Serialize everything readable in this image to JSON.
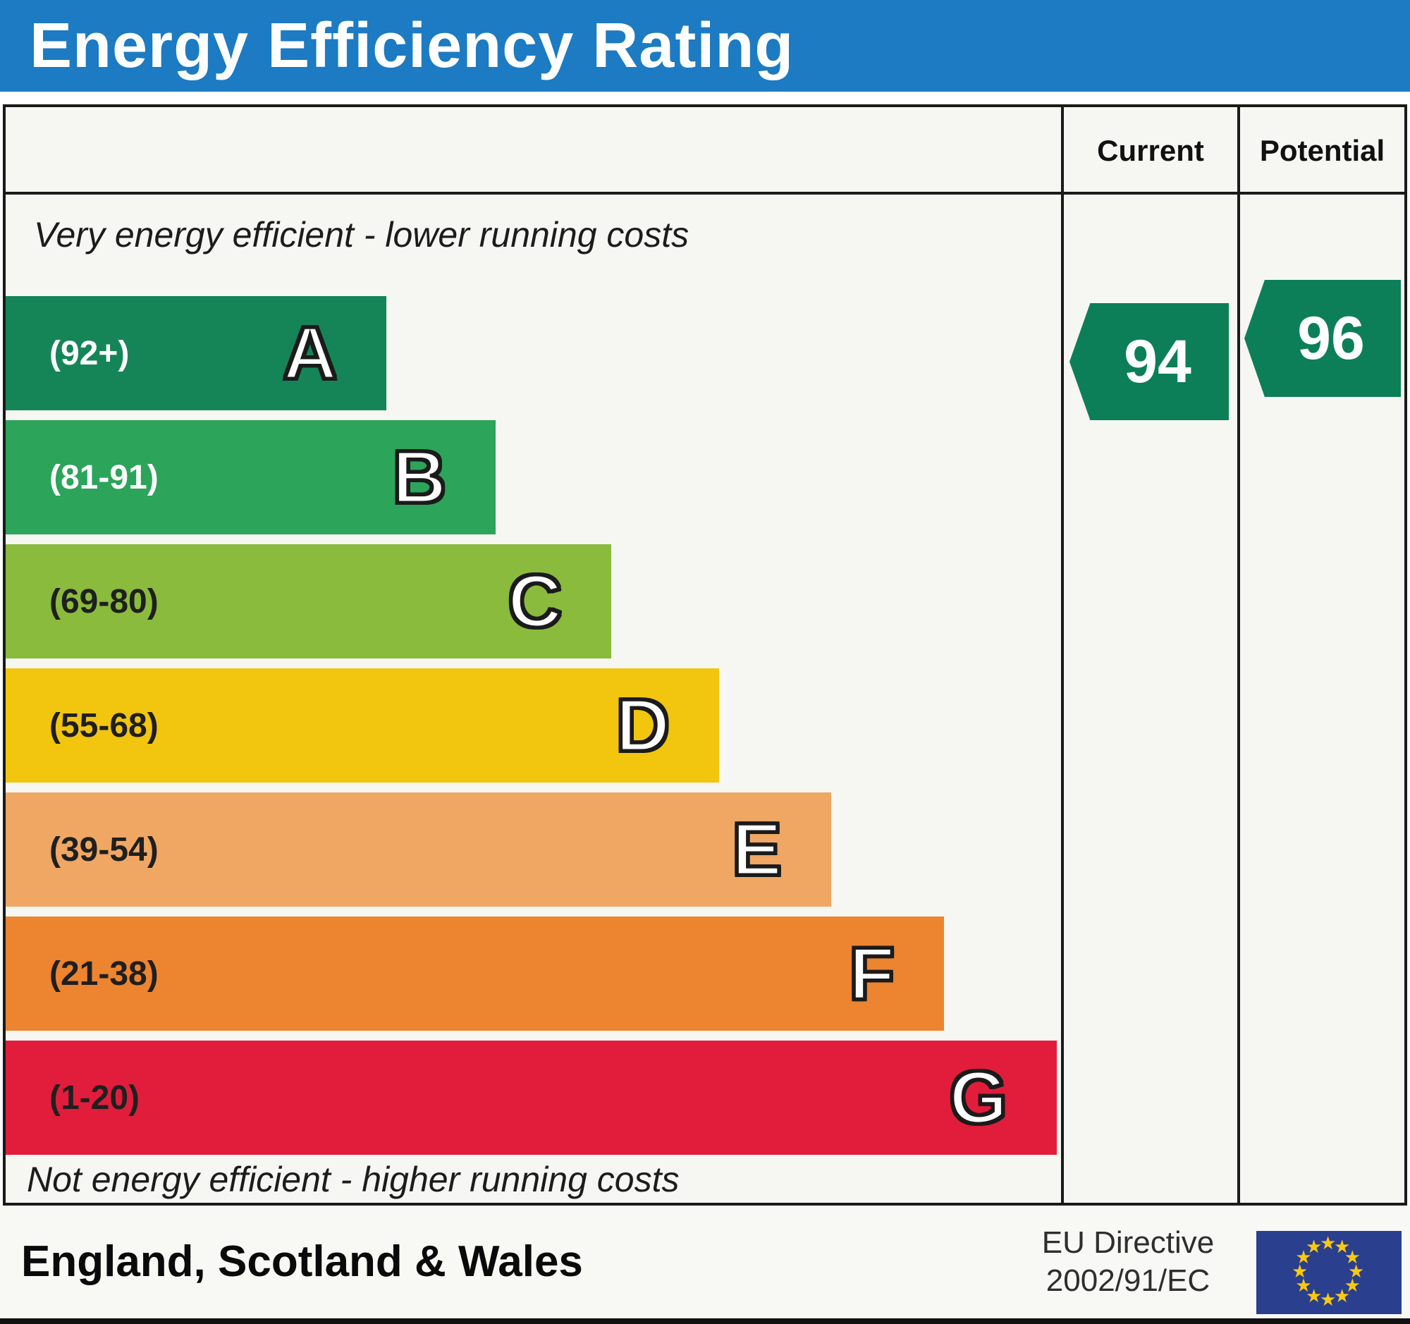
{
  "title": "Energy Efficiency Rating",
  "header": {
    "current": "Current",
    "potential": "Potential"
  },
  "notes": {
    "top": "Very energy efficient - lower running costs",
    "bottom": "Not energy efficient - higher running costs"
  },
  "bands": [
    {
      "letter": "A",
      "range": "(92+)",
      "color": "#158557",
      "text_color": "#ffffff",
      "width_pct": 36.1
    },
    {
      "letter": "B",
      "range": "(81-91)",
      "color": "#2ca45a",
      "text_color": "#ffffff",
      "width_pct": 46.4
    },
    {
      "letter": "C",
      "range": "(69-80)",
      "color": "#8abb3c",
      "text_color": "#1f1f1f",
      "width_pct": 57.4
    },
    {
      "letter": "D",
      "range": "(55-68)",
      "color": "#f2c50e",
      "text_color": "#1f1f1f",
      "width_pct": 67.6
    },
    {
      "letter": "E",
      "range": "(39-54)",
      "color": "#efa763",
      "text_color": "#1f1f1f",
      "width_pct": 78.2
    },
    {
      "letter": "F",
      "range": "(21-38)",
      "color": "#ec8430",
      "text_color": "#1f1f1f",
      "width_pct": 88.9
    },
    {
      "letter": "G",
      "range": "(1-20)",
      "color": "#e11d3b",
      "text_color": "#1f1f1f",
      "width_pct": 99.6
    }
  ],
  "current": {
    "value": "94",
    "band": "A",
    "color": "#0c7f58"
  },
  "potential": {
    "value": "96",
    "band": "A",
    "color": "#0c7f58"
  },
  "footer": {
    "region": "England, Scotland & Wales",
    "directive_line1": "EU Directive",
    "directive_line2": "2002/91/EC"
  },
  "colors": {
    "header_bg": "#1c7bc2",
    "header_text": "#ffffff",
    "border": "#1a1a1a",
    "panel_bg": "#f6f6f2",
    "eu_flag_blue": "#2a3f8d",
    "eu_star_gold": "#fbc80f"
  },
  "chart_data": {
    "type": "bar",
    "orientation": "horizontal",
    "title": "Energy Efficiency Rating",
    "categories": [
      "A",
      "B",
      "C",
      "D",
      "E",
      "F",
      "G"
    ],
    "category_ranges": [
      "92+",
      "81-91",
      "69-80",
      "55-68",
      "39-54",
      "21-38",
      "1-20"
    ],
    "bar_length_pct": [
      36.1,
      46.4,
      57.4,
      67.6,
      78.2,
      88.9,
      99.6
    ],
    "bar_colors": [
      "#158557",
      "#2ca45a",
      "#8abb3c",
      "#f2c50e",
      "#efa763",
      "#ec8430",
      "#e11d3b"
    ],
    "scale_min": 1,
    "scale_max": 100,
    "current_rating": 94,
    "current_band": "A",
    "potential_rating": 96,
    "potential_band": "A",
    "legend_position": "none",
    "grid": false,
    "annotations": [
      "Very energy efficient - lower running costs",
      "Not energy efficient - higher running costs",
      "England, Scotland & Wales",
      "EU Directive 2002/91/EC"
    ]
  }
}
